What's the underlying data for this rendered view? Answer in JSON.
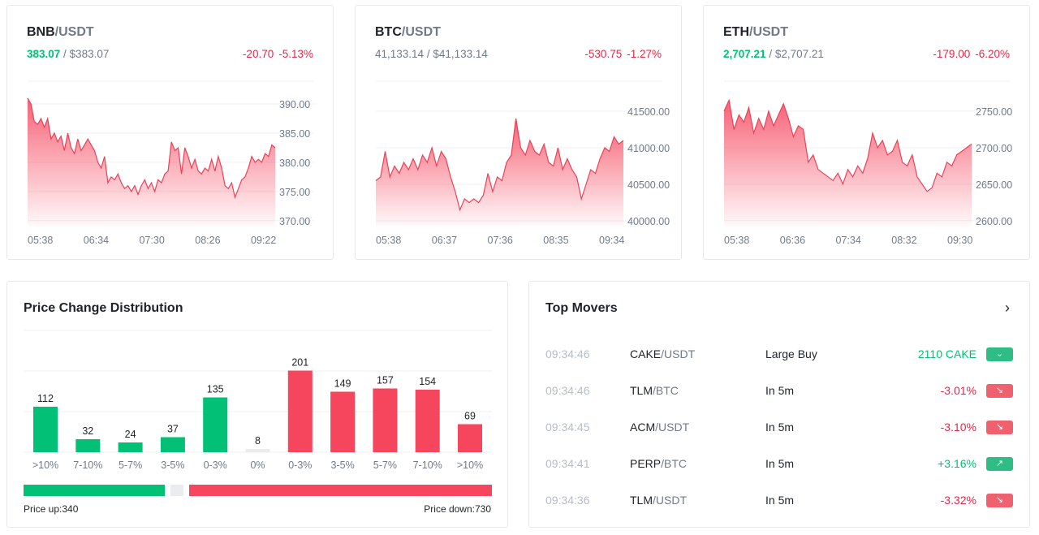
{
  "colors": {
    "up": "#02c076",
    "down": "#f6465d",
    "neutral": "#eaecef"
  },
  "tickers": [
    {
      "base": "BNB",
      "quote": "/USDT",
      "price": "383.07",
      "price_dir": "up",
      "usd": " / $383.07",
      "change": "-20.70",
      "change_pct": "-5.13%",
      "chart_data": {
        "type": "area",
        "ylim": [
          369,
          393.9
        ],
        "yticks": [
          "390.00",
          "385.00",
          "380.00",
          "375.00",
          "370.00"
        ],
        "ytick_values": [
          390,
          385,
          380,
          375,
          370
        ],
        "xticks": [
          "05:38",
          "06:34",
          "07:30",
          "08:26",
          "09:22"
        ],
        "values": [
          391,
          390,
          387,
          386.5,
          387.5,
          386,
          387.5,
          384,
          385,
          383.5,
          384.5,
          382,
          385,
          382.5,
          381.5,
          384,
          382,
          383,
          384,
          383,
          382,
          380,
          379,
          381,
          376.5,
          377.5,
          377,
          378,
          376.5,
          375.5,
          376,
          375,
          376,
          374.5,
          376,
          377,
          375.5,
          376.5,
          375,
          377,
          376.5,
          378,
          378.5,
          383.5,
          382,
          382.5,
          378,
          382.5,
          381,
          379,
          380.5,
          378.5,
          378,
          379,
          378.5,
          380.5,
          378.5,
          381,
          379,
          376,
          375.5,
          376.5,
          374,
          375.5,
          377,
          377.5,
          379,
          381,
          380,
          380.5,
          380,
          381.5,
          381,
          383,
          382.5
        ]
      }
    },
    {
      "base": "BTC",
      "quote": "/USDT",
      "price": "41,133.14",
      "price_dir": "down",
      "usd": " / $41,133.14",
      "change": "-530.75",
      "change_pct": "-1.27%",
      "chart_data": {
        "type": "area",
        "ylim": [
          39922,
          41911
        ],
        "yticks": [
          "41500.00",
          "41000.00",
          "40500.00",
          "40000.00"
        ],
        "ytick_values": [
          41500,
          41000,
          40500,
          40000
        ],
        "xticks": [
          "05:38",
          "06:37",
          "07:36",
          "08:35",
          "09:34"
        ],
        "values": [
          40550,
          40600,
          40950,
          40600,
          40750,
          40650,
          40800,
          40700,
          40850,
          40700,
          40900,
          40800,
          41000,
          40750,
          40950,
          40850,
          40600,
          40400,
          40150,
          40300,
          40250,
          40300,
          40250,
          40350,
          40650,
          40400,
          40600,
          40550,
          40800,
          40900,
          41400,
          41000,
          40900,
          41100,
          40950,
          40900,
          41050,
          40800,
          40750,
          41000,
          40700,
          40850,
          40700,
          40600,
          40300,
          40500,
          40700,
          40650,
          40850,
          41000,
          40950,
          41150,
          41050,
          41100
        ]
      }
    },
    {
      "base": "ETH",
      "quote": "/USDT",
      "price": "2,707.21",
      "price_dir": "up",
      "usd": " / $2,707.21",
      "change": "-179.00",
      "change_pct": "-6.20%",
      "chart_data": {
        "type": "area",
        "ylim": [
          2592,
          2791
        ],
        "yticks": [
          "2750.00",
          "2700.00",
          "2650.00",
          "2600.00"
        ],
        "ytick_values": [
          2750,
          2700,
          2650,
          2600
        ],
        "xticks": [
          "05:38",
          "06:36",
          "07:34",
          "08:32",
          "09:30"
        ],
        "values": [
          2750,
          2765,
          2725,
          2745,
          2735,
          2755,
          2720,
          2740,
          2725,
          2750,
          2730,
          2745,
          2760,
          2740,
          2715,
          2730,
          2725,
          2680,
          2690,
          2670,
          2665,
          2660,
          2655,
          2665,
          2650,
          2670,
          2660,
          2675,
          2665,
          2685,
          2720,
          2700,
          2710,
          2690,
          2695,
          2710,
          2680,
          2675,
          2690,
          2660,
          2650,
          2640,
          2645,
          2665,
          2660,
          2680,
          2675,
          2690,
          2695,
          2700,
          2705
        ]
      }
    }
  ],
  "distribution": {
    "title": "Price Change Distribution",
    "chart_data": {
      "type": "bar",
      "categories": [
        ">10%",
        "7-10%",
        "5-7%",
        "3-5%",
        "0-3%",
        "0%",
        "0-3%",
        "3-5%",
        "5-7%",
        "7-10%",
        ">10%"
      ],
      "values": [
        112,
        32,
        24,
        37,
        135,
        8,
        201,
        149,
        157,
        154,
        69
      ],
      "labels": [
        "112",
        "32",
        "24",
        "37",
        "135",
        "8",
        "201",
        "149",
        "157",
        "154",
        "69"
      ],
      "direction": [
        "up",
        "up",
        "up",
        "up",
        "up",
        "flat",
        "down",
        "down",
        "down",
        "down",
        "down"
      ],
      "ylim": [
        0,
        300
      ]
    },
    "price_up_label": "Price up:340",
    "price_down_label": "Price down:730",
    "up_count": 340,
    "down_count": 730,
    "flat_count": 8
  },
  "movers": {
    "title": "Top Movers",
    "rows": [
      {
        "time": "09:34:46",
        "base": "CAKE",
        "quote": "/USDT",
        "type": "Large Buy",
        "value": "2110 CAKE",
        "dir": "up",
        "icon": "⌄"
      },
      {
        "time": "09:34:46",
        "base": "TLM",
        "quote": "/BTC",
        "type": "In 5m",
        "value": "-3.01%",
        "dir": "down",
        "icon": "↘"
      },
      {
        "time": "09:34:45",
        "base": "ACM",
        "quote": "/USDT",
        "type": "In 5m",
        "value": "-3.10%",
        "dir": "down",
        "icon": "↘"
      },
      {
        "time": "09:34:41",
        "base": "PERP",
        "quote": "/BTC",
        "type": "In 5m",
        "value": "+3.16%",
        "dir": "up",
        "icon": "↗"
      },
      {
        "time": "09:34:36",
        "base": "TLM",
        "quote": "/USDT",
        "type": "In 5m",
        "value": "-3.32%",
        "dir": "down",
        "icon": "↘"
      }
    ]
  }
}
